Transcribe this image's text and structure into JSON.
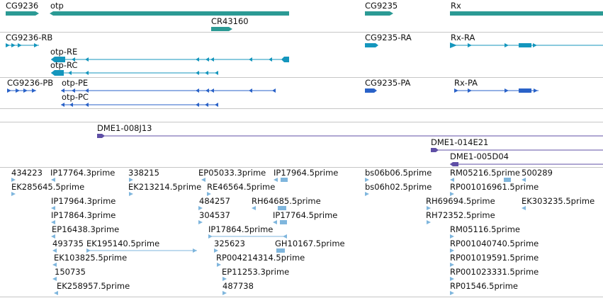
{
  "colors": {
    "gene": "#2b9a94",
    "transcript_cyan": "#1496bd",
    "transcript_blue": "#2a62c8",
    "clone": "#5f4fa6",
    "est": "#7fb6dd",
    "divider": "#c6c6c6"
  },
  "genes": [
    {
      "label": "CG9236"
    },
    {
      "label": "otp"
    },
    {
      "label": "CR43160"
    },
    {
      "label": "CG9235"
    },
    {
      "label": "Rx"
    }
  ],
  "transcripts_a": [
    {
      "label": "CG9236-RB"
    },
    {
      "label": "otp-RE"
    },
    {
      "label": "otp-RC"
    },
    {
      "label": "CG9235-RA"
    },
    {
      "label": "Rx-RA"
    }
  ],
  "transcripts_b": [
    {
      "label": "CG9236-PB"
    },
    {
      "label": "otp-PE"
    },
    {
      "label": "otp-PC"
    },
    {
      "label": "CG9235-PA"
    },
    {
      "label": "Rx-PA"
    }
  ],
  "clones": [
    {
      "label": "DME1-008J13"
    },
    {
      "label": "DME1-014E21"
    },
    {
      "label": "DME1-005D04"
    }
  ],
  "ests": [
    {
      "label": "434223"
    },
    {
      "label": "EK285645.5prime"
    },
    {
      "label": "IP17764.3prime"
    },
    {
      "label": "IP17964.3prime"
    },
    {
      "label": "IP17864.3prime"
    },
    {
      "label": "EP16438.3prime"
    },
    {
      "label": "493735"
    },
    {
      "label": "EK195140.5prime"
    },
    {
      "label": "EK103825.5prime"
    },
    {
      "label": "150735"
    },
    {
      "label": "EK258957.5prime"
    },
    {
      "label": "338215"
    },
    {
      "label": "EK213214.5prime"
    },
    {
      "label": "EP05033.3prime"
    },
    {
      "label": "RE46564.5prime"
    },
    {
      "label": "484257"
    },
    {
      "label": "304537"
    },
    {
      "label": "IP17864.5prime"
    },
    {
      "label": "325623"
    },
    {
      "label": "RP004214314.5prime"
    },
    {
      "label": "EP11253.3prime"
    },
    {
      "label": "487738"
    },
    {
      "label": "IP17964.5prime"
    },
    {
      "label": "RH64685.5prime"
    },
    {
      "label": "IP17764.5prime"
    },
    {
      "label": "GH10167.5prime"
    },
    {
      "label": "bs06b06.5prime"
    },
    {
      "label": "bs06h02.5prime"
    },
    {
      "label": "RM05216.5prime"
    },
    {
      "label": "500289"
    },
    {
      "label": "RP001016961.5prime"
    },
    {
      "label": "RH69694.5prime"
    },
    {
      "label": "EK303235.5prime"
    },
    {
      "label": "RH72352.5prime"
    },
    {
      "label": "RM05116.5prime"
    },
    {
      "label": "RP001040740.5prime"
    },
    {
      "label": "RP001019591.5prime"
    },
    {
      "label": "RP001023331.5prime"
    },
    {
      "label": "RP01546.5prime"
    }
  ]
}
